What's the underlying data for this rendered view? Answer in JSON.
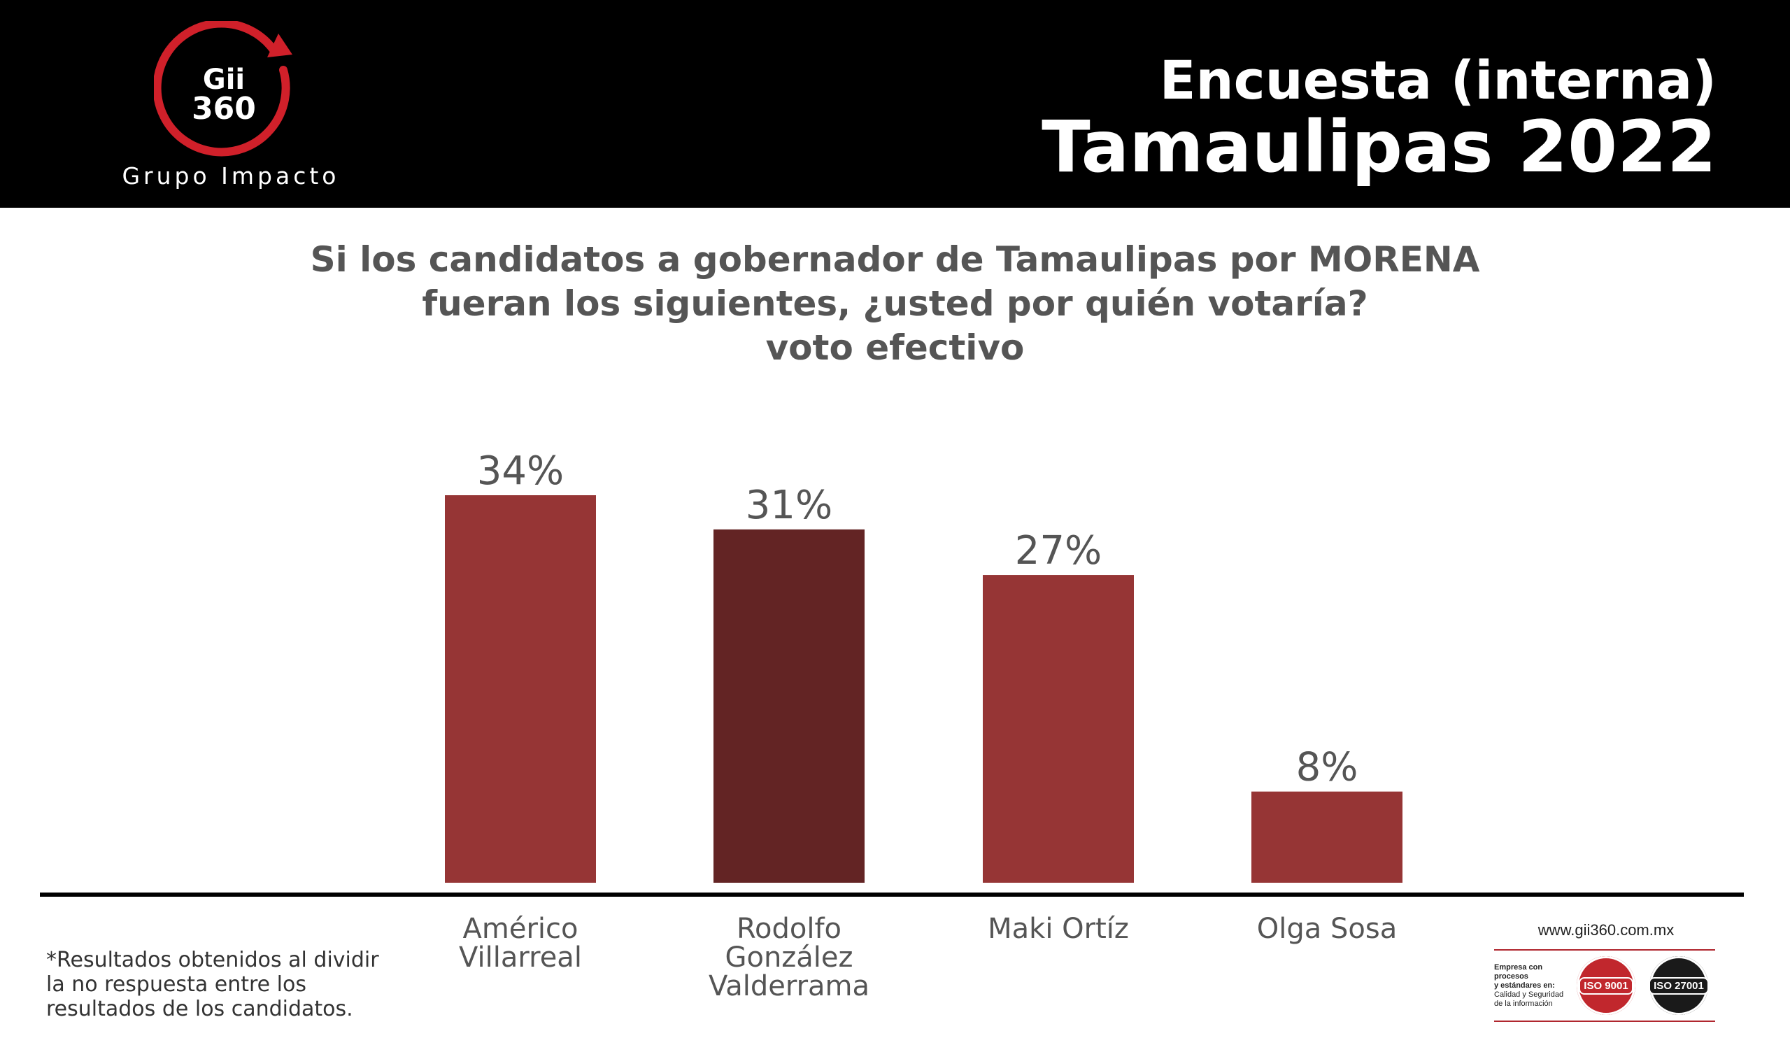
{
  "brand": {
    "logo_line1": "Gii",
    "logo_line2": "360",
    "tagline": "Grupo Impacto",
    "logo_icon": "circular-arrow-icon",
    "accent_color": "#d0202a"
  },
  "header": {
    "title_line1": "Encuesta (interna)",
    "title_line2": "Tamaulipas 2022",
    "background": "#000000"
  },
  "question": {
    "line1": "Si los candidatos a gobernador de Tamaulipas por MORENA",
    "line2": "fueran los siguientes, ¿usted por quién votaría?",
    "line3": "voto efectivo"
  },
  "chart_data": {
    "type": "bar",
    "categories": [
      [
        "Américo",
        "Villarreal"
      ],
      [
        "Rodolfo",
        "González",
        "Valderrama"
      ],
      [
        "Maki Ortíz"
      ],
      [
        "Olga Sosa"
      ]
    ],
    "values": [
      34,
      31,
      27,
      8
    ],
    "value_labels": [
      "34%",
      "31%",
      "27%",
      "8%"
    ],
    "bar_colors": [
      "#963535",
      "#632424",
      "#963535",
      "#963535"
    ],
    "ylim": [
      0,
      34
    ],
    "grid": false,
    "legend": "none"
  },
  "footnote": {
    "line1": "*Resultados obtenidos al dividir",
    "line2": "la no respuesta entre los",
    "line3": "resultados de los candidatos."
  },
  "footer": {
    "website": "www.gii360.com.mx",
    "cert_line1": "Empresa con procesos",
    "cert_line2": "y estándares en:",
    "cert_line3": "Calidad y Seguridad",
    "cert_line4": "de la información",
    "iso1": "ISO 9001",
    "iso2": "ISO 27001"
  }
}
